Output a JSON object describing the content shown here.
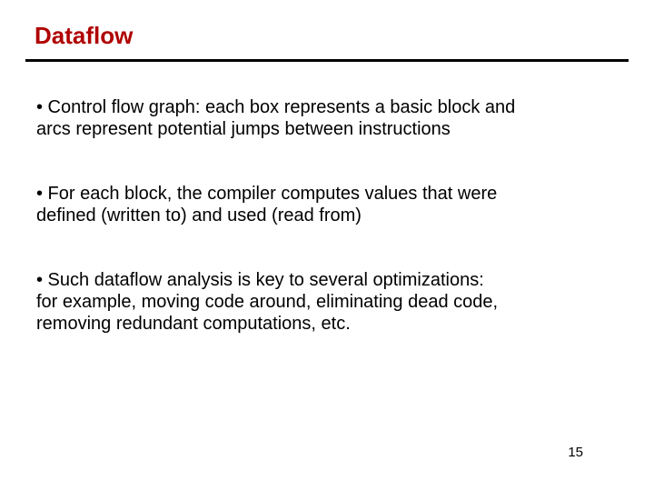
{
  "title": {
    "text": "Dataflow",
    "color": "#b00000",
    "fontsize": 26
  },
  "rule": {
    "color": "#000000",
    "thickness": 3
  },
  "body": {
    "color": "#000000",
    "fontsize": 20,
    "bullets": [
      {
        "lines": [
          "• Control flow graph: each box represents a basic block and",
          "  arcs represent potential jumps between instructions"
        ]
      },
      {
        "lines": [
          "• For each block, the compiler computes values that were",
          "  defined (written to) and used (read from)"
        ]
      },
      {
        "lines": [
          "• Such dataflow analysis is key to several optimizations:",
          "   for example, moving code around, eliminating dead code,",
          "   removing redundant computations, etc."
        ]
      }
    ]
  },
  "page_number": {
    "text": "15",
    "fontsize": 15,
    "color": "#000000"
  }
}
